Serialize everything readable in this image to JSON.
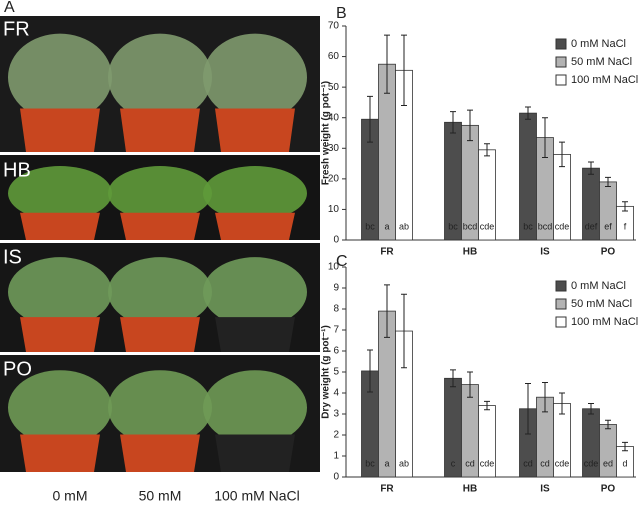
{
  "photo_panel": {
    "label": "A",
    "rows": [
      "FR",
      "HB",
      "IS",
      "PO"
    ],
    "columns": [
      "0 mM",
      "50 mM",
      "100 mM NaCl"
    ]
  },
  "chart_data": [
    {
      "type": "bar",
      "panel": "B",
      "ylabel": "Fresh weight (g pot⁻¹)",
      "categories": [
        "FR",
        "HB",
        "IS",
        "PO"
      ],
      "ylim": [
        0,
        70
      ],
      "yticks": [
        0,
        10,
        20,
        30,
        40,
        50,
        60,
        70
      ],
      "series": [
        {
          "name": "0 mM NaCl",
          "color": "#4d4d4d",
          "values": [
            39.5,
            38.5,
            41.5,
            23.5
          ],
          "errors": [
            7.5,
            3.5,
            2,
            2
          ],
          "letters": [
            "bc",
            "bc",
            "bc",
            "def"
          ]
        },
        {
          "name": "50 mM NaCl",
          "color": "#b3b3b3",
          "values": [
            57.5,
            37.5,
            33.5,
            19
          ],
          "errors": [
            9.5,
            5,
            6.5,
            1.5
          ],
          "letters": [
            "a",
            "bcd",
            "bcd",
            "ef"
          ]
        },
        {
          "name": "100 mM NaCl",
          "color": "#ffffff",
          "values": [
            55.5,
            29.5,
            28,
            11
          ],
          "errors": [
            11.5,
            2,
            4,
            1.5
          ],
          "letters": [
            "ab",
            "cde",
            "cde",
            "f"
          ]
        }
      ]
    },
    {
      "type": "bar",
      "panel": "C",
      "ylabel": "Dry weight (g pot⁻¹)",
      "categories": [
        "FR",
        "HB",
        "IS",
        "PO"
      ],
      "ylim": [
        0,
        10
      ],
      "yticks": [
        0,
        1,
        2,
        3,
        4,
        5,
        6,
        7,
        8,
        9,
        10
      ],
      "series": [
        {
          "name": "0 mM NaCl",
          "color": "#4d4d4d",
          "values": [
            5.05,
            4.7,
            3.25,
            3.25
          ],
          "errors": [
            1,
            0.4,
            1.2,
            0.25
          ],
          "letters": [
            "bc",
            "c",
            "cd",
            "cde"
          ]
        },
        {
          "name": "50 mM NaCl",
          "color": "#b3b3b3",
          "values": [
            7.9,
            4.4,
            3.8,
            2.5
          ],
          "errors": [
            1.25,
            0.6,
            0.7,
            0.2
          ],
          "letters": [
            "a",
            "cd",
            "cd",
            "ed"
          ]
        },
        {
          "name": "100 mM NaCl",
          "color": "#ffffff",
          "values": [
            6.95,
            3.4,
            3.5,
            1.45
          ],
          "errors": [
            1.75,
            0.2,
            0.5,
            0.2
          ],
          "letters": [
            "ab",
            "cde",
            "cde",
            "d"
          ]
        }
      ]
    }
  ]
}
